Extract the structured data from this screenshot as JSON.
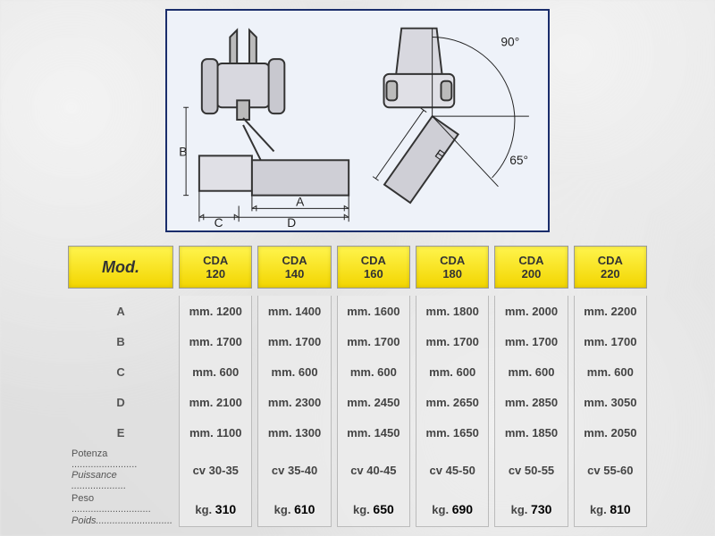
{
  "diagram": {
    "border_color": "#1a2d6b",
    "bg_color": "#eef2f9",
    "angles": {
      "top": "90°",
      "bottom": "65°"
    },
    "dim_labels": [
      "A",
      "B",
      "C",
      "D",
      "E"
    ]
  },
  "table": {
    "header_bg_gradient": [
      "#fff44d",
      "#f2d500"
    ],
    "mod_label": "Mod.",
    "columns": [
      {
        "name": "CDA 120"
      },
      {
        "name": "CDA 140"
      },
      {
        "name": "CDA 160"
      },
      {
        "name": "CDA 180"
      },
      {
        "name": "CDA 200"
      },
      {
        "name": "CDA 220"
      }
    ],
    "rows": [
      {
        "label": "A",
        "cells": [
          "mm. 1200",
          "mm. 1400",
          "mm. 1600",
          "mm. 1800",
          "mm. 2000",
          "mm. 2200"
        ]
      },
      {
        "label": "B",
        "cells": [
          "mm. 1700",
          "mm. 1700",
          "mm. 1700",
          "mm. 1700",
          "mm. 1700",
          "mm. 1700"
        ]
      },
      {
        "label": "C",
        "cells": [
          "mm. 600",
          "mm. 600",
          "mm. 600",
          "mm. 600",
          "mm. 600",
          "mm. 600"
        ]
      },
      {
        "label": "D",
        "cells": [
          "mm. 2100",
          "mm. 2300",
          "mm. 2450",
          "mm. 2650",
          "mm. 2850",
          "mm. 3050"
        ]
      },
      {
        "label": "E",
        "cells": [
          "mm. 1100",
          "mm. 1300",
          "mm. 1450",
          "mm. 1650",
          "mm. 1850",
          "mm. 2050"
        ]
      }
    ],
    "power_row": {
      "label_line1": "Potenza ........................",
      "label_line2": "Puissance ....................",
      "cells": [
        "cv 30-35",
        "cv 35-40",
        "cv 40-45",
        "cv 45-50",
        "cv 50-55",
        "cv 55-60"
      ]
    },
    "weight_row": {
      "label_line1": "Peso .............................",
      "label_line2": "Poids............................",
      "prefix": "kg.",
      "cells": [
        "310",
        "610",
        "650",
        "690",
        "730",
        "810"
      ]
    }
  }
}
